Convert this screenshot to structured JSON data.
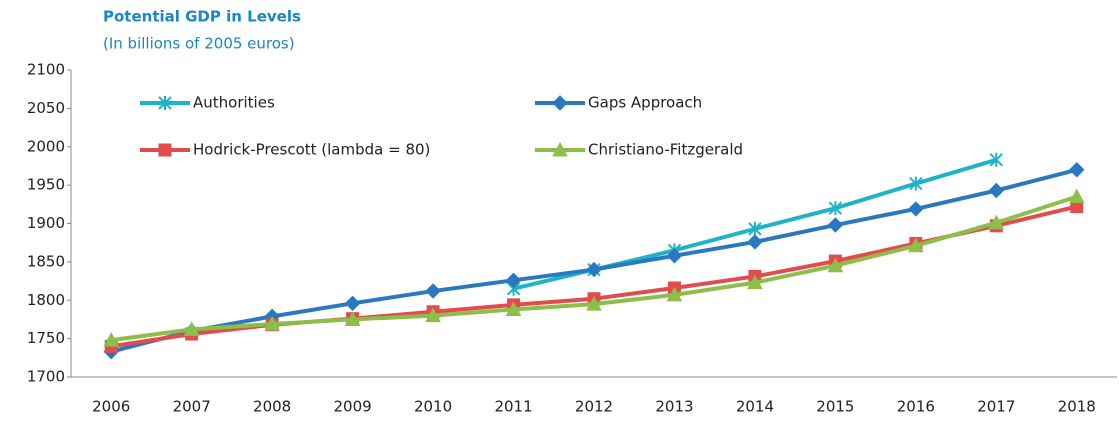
{
  "chart_data": {
    "type": "line",
    "title": "Potential GDP in Levels",
    "subtitle": "(In billions of 2005 euros)",
    "categories": [
      "2006",
      "2007",
      "2008",
      "2009",
      "2010",
      "2011",
      "2012",
      "2013",
      "2014",
      "2015",
      "2016",
      "2017",
      "2018"
    ],
    "series": [
      {
        "name": "Authorities",
        "color": "#1fb3c9",
        "marker": "asterisk",
        "values": [
          null,
          null,
          null,
          null,
          null,
          1815,
          1840,
          1865,
          1893,
          1920,
          1952,
          1983,
          null
        ]
      },
      {
        "name": "Gaps Approach",
        "color": "#2a78bf",
        "marker": "diamond",
        "values": [
          1733,
          1760,
          1779,
          1796,
          1812,
          1826,
          1840,
          1858,
          1876,
          1898,
          1919,
          1943,
          1970
        ]
      },
      {
        "name": "Hodrick-Prescott (lambda = 80)",
        "color": "#e34c4c",
        "marker": "square",
        "values": [
          1740,
          1756,
          1768,
          1776,
          1785,
          1794,
          1802,
          1816,
          1831,
          1851,
          1874,
          1897,
          1922
        ]
      },
      {
        "name": "Christiano-Fitzgerald",
        "color": "#8cbf4a",
        "marker": "triangle",
        "values": [
          1748,
          1762,
          1769,
          1775,
          1780,
          1788,
          1795,
          1807,
          1823,
          1845,
          1871,
          1901,
          1935
        ]
      }
    ],
    "ylim": [
      1700,
      2100
    ],
    "yticks": [
      1700,
      1750,
      1800,
      1850,
      1900,
      1950,
      2000,
      2050,
      2100
    ]
  }
}
